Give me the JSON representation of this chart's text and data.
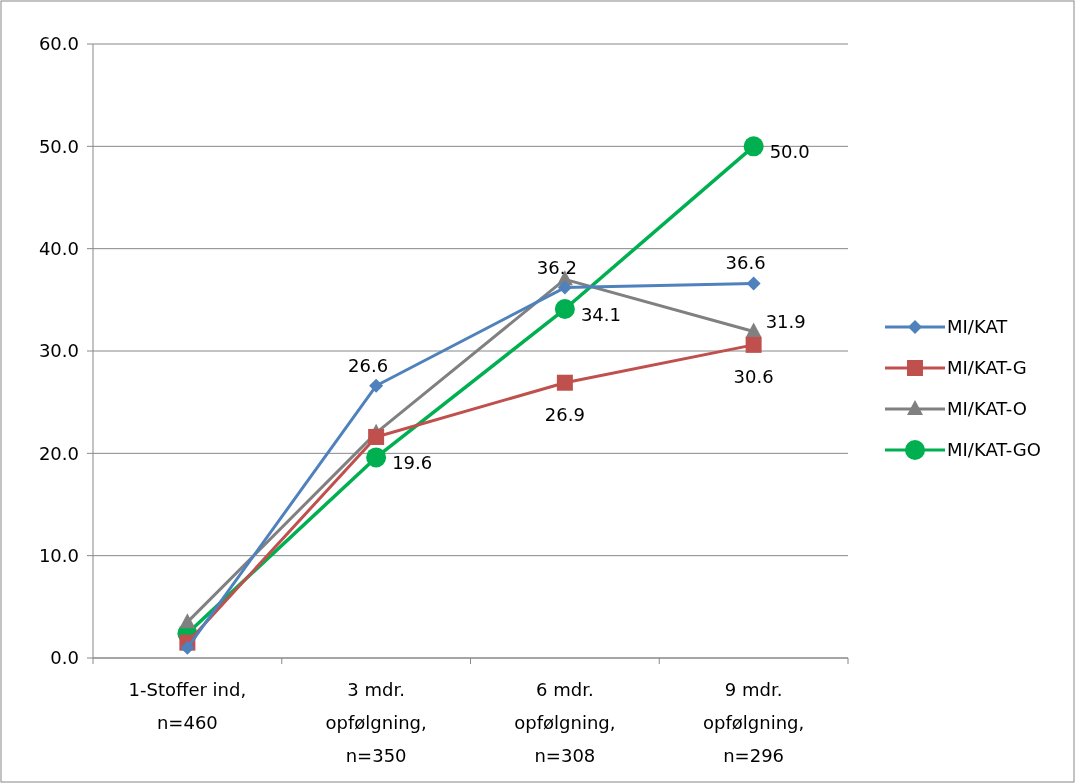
{
  "chart_data": {
    "type": "line",
    "categories": [
      "1-Stoffer ind, n=460",
      "3 mdr. opfølgning, n=350",
      "6 mdr. opfølgning, n=308",
      "9 mdr. opfølgning, n=296"
    ],
    "series": [
      {
        "name": "MI/KAT",
        "color": "#4f81bd",
        "marker": "diamond",
        "values": [
          1.0,
          26.6,
          36.2,
          36.6
        ],
        "value_labels": [
          null,
          "26.6",
          "36.2",
          "36.6"
        ]
      },
      {
        "name": "MI/KAT-G",
        "color": "#c0504d",
        "marker": "square",
        "values": [
          1.5,
          21.6,
          26.9,
          30.6
        ],
        "value_labels": [
          null,
          null,
          "26.9",
          "30.6"
        ]
      },
      {
        "name": "MI/KAT-O",
        "color": "#808080",
        "marker": "triangle",
        "values": [
          3.5,
          22.0,
          37.0,
          31.9
        ],
        "value_labels": [
          null,
          null,
          null,
          "31.9"
        ]
      },
      {
        "name": "MI/KAT-GO",
        "color": "#00b050",
        "marker": "circle",
        "values": [
          2.4,
          19.6,
          34.1,
          50.0
        ],
        "value_labels": [
          null,
          "19.6",
          "34.1",
          "50.0"
        ]
      }
    ],
    "ylim": [
      0,
      60
    ],
    "yticks": [
      {
        "value": 0,
        "label": "0.0"
      },
      {
        "value": 10,
        "label": "10.0"
      },
      {
        "value": 20,
        "label": "20.0"
      },
      {
        "value": 30,
        "label": "30.0"
      },
      {
        "value": 40,
        "label": "40.0"
      },
      {
        "value": 50,
        "label": "50.0"
      },
      {
        "value": 60,
        "label": "60.0"
      }
    ],
    "grid": "y",
    "legend": "right",
    "line_style": "solid"
  }
}
